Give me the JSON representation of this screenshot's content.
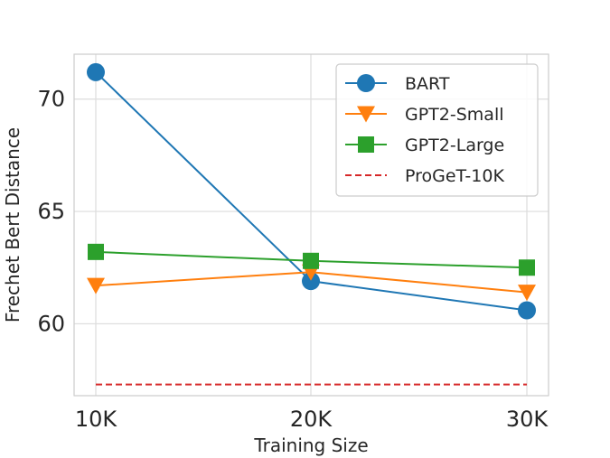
{
  "chart_data": {
    "type": "line",
    "xlabel": "Training Size",
    "ylabel": "Frechet Bert Distance",
    "categories": [
      "10K",
      "20K",
      "30K"
    ],
    "ylim": [
      56.8,
      72.0
    ],
    "yticks": [
      60,
      65,
      70
    ],
    "grid": true,
    "legend_position": "top-right",
    "series": [
      {
        "name": "BART",
        "values": [
          71.2,
          61.9,
          60.6
        ],
        "color": "#1f77b4",
        "marker": "circle",
        "style": "solid"
      },
      {
        "name": "GPT2-Small",
        "values": [
          61.7,
          62.3,
          61.4
        ],
        "color": "#ff7f0e",
        "marker": "triangle-down",
        "style": "solid"
      },
      {
        "name": "GPT2-Large",
        "values": [
          63.2,
          62.8,
          62.5
        ],
        "color": "#2ca02c",
        "marker": "square",
        "style": "solid"
      },
      {
        "name": "ProGeT-10K",
        "values": [
          57.3,
          57.3,
          57.3
        ],
        "color": "#d62728",
        "marker": "none",
        "style": "dashed"
      }
    ]
  }
}
